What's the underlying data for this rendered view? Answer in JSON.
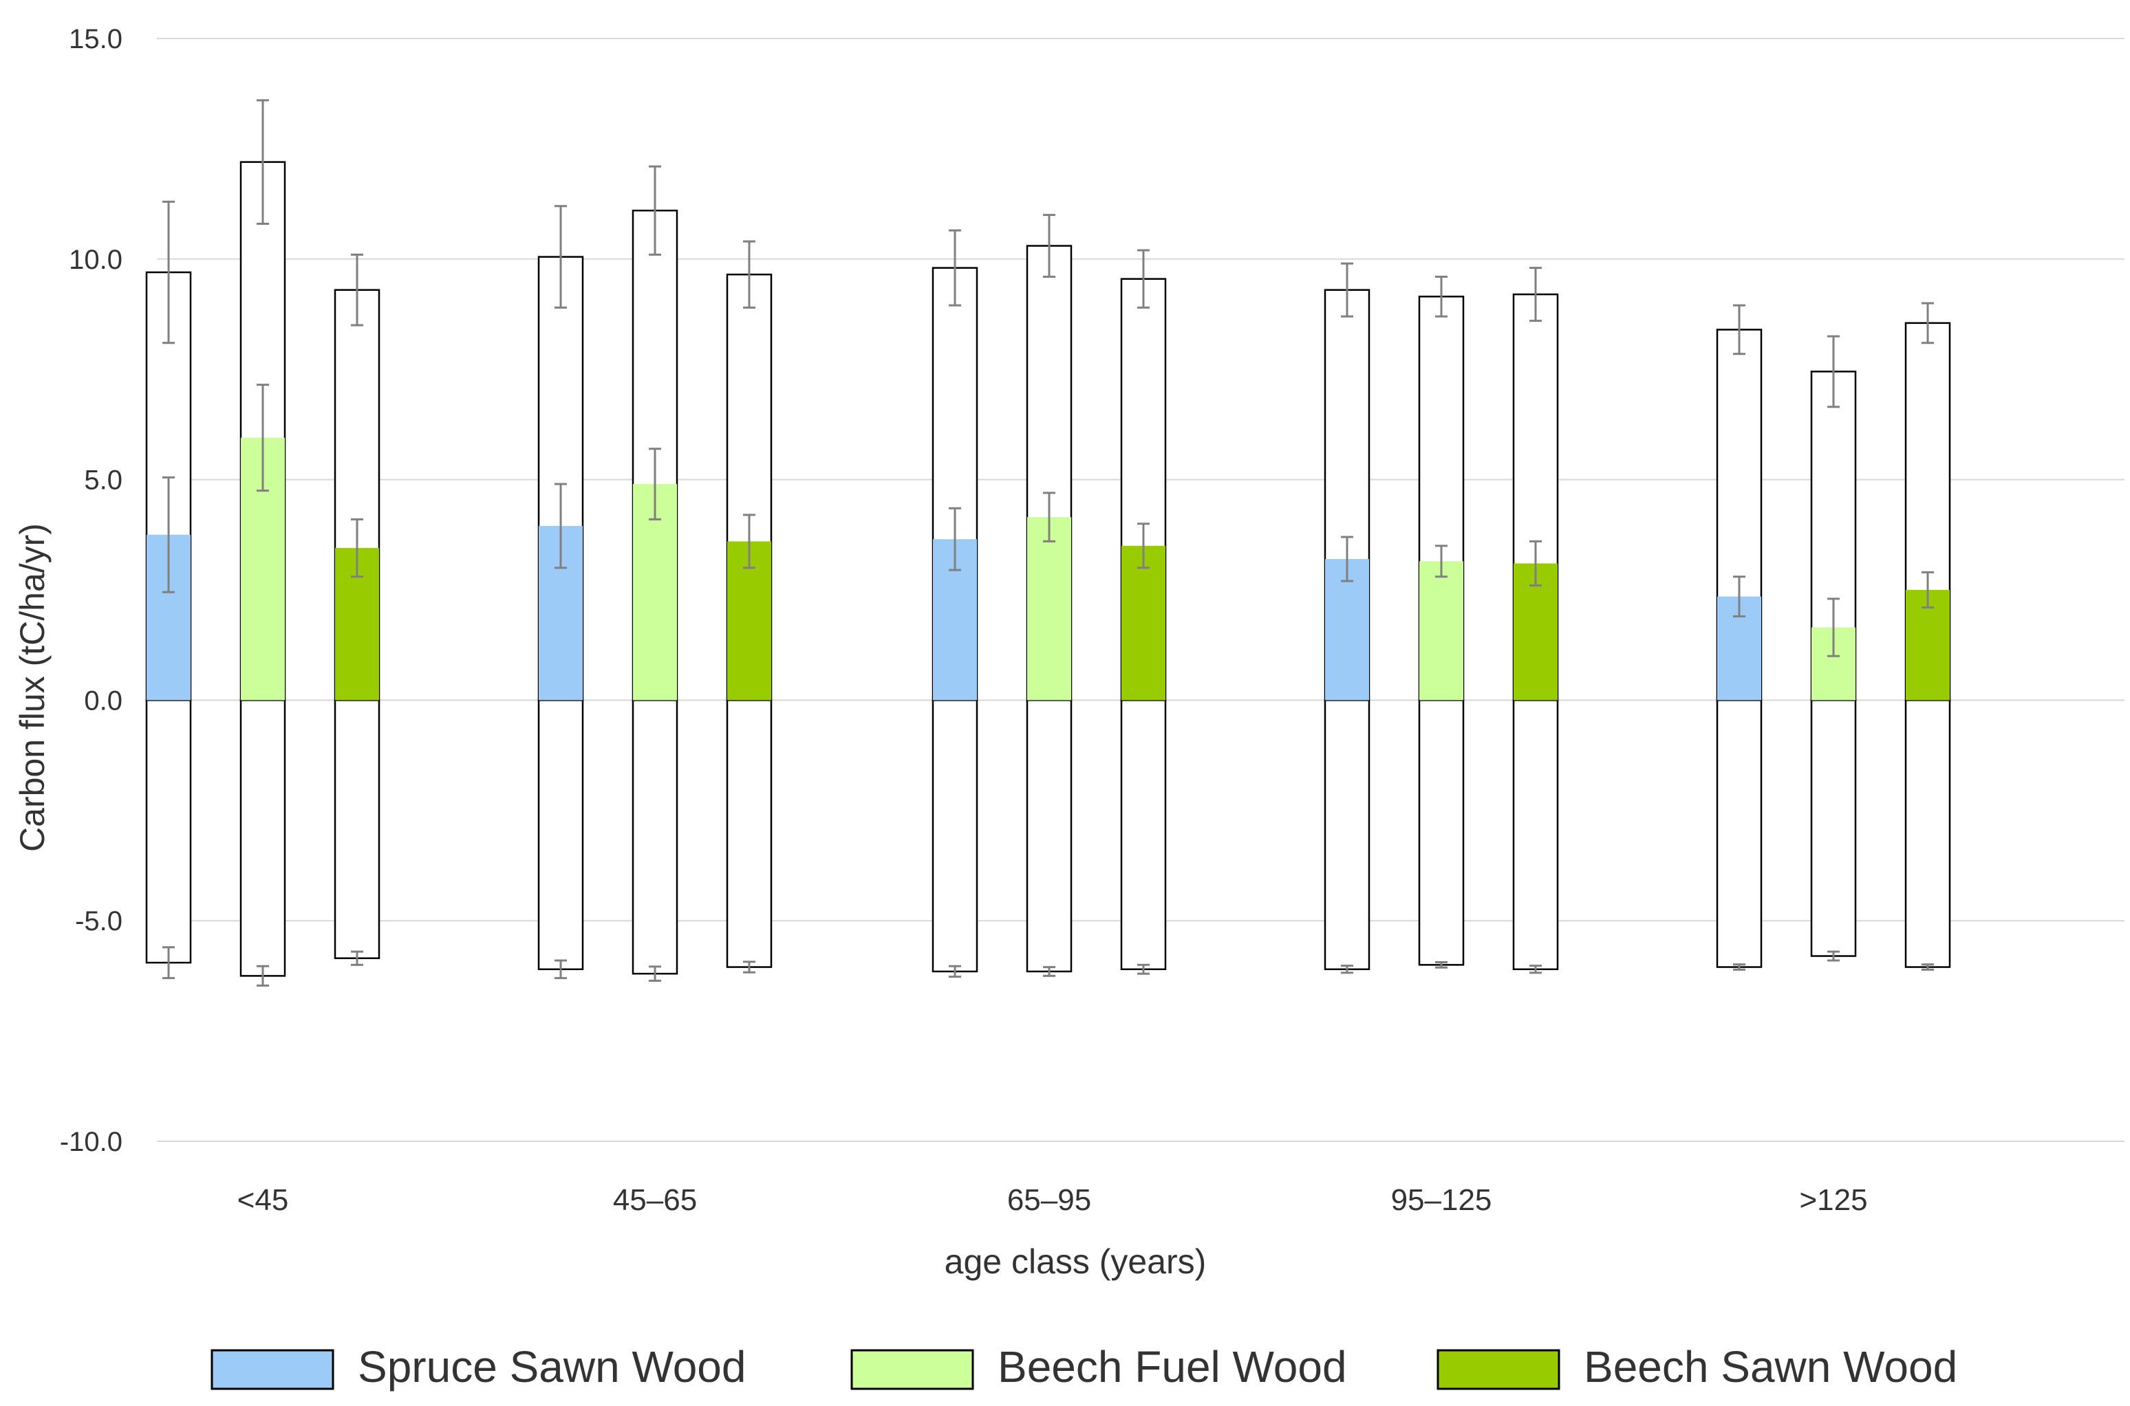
{
  "chart_data": {
    "type": "bar",
    "title": "",
    "xlabel": "age class (years)",
    "ylabel": "Carbon flux (tC/ha/yr)",
    "ylim": [
      -10,
      15
    ],
    "yticks": [
      15,
      10,
      5,
      0,
      -5,
      -10
    ],
    "ytick_labels": [
      "15.0",
      "10.0",
      "5.0",
      "0.0",
      "-5.0",
      "-10.0"
    ],
    "grid": true,
    "legend_position": "bottom",
    "categories": [
      "<45",
      "45–65",
      "65–95",
      "95–125",
      ">125"
    ],
    "series": [
      {
        "name": "Spruce Sawn Wood",
        "color": "#9dcbf7",
        "positive_total": [
          9.7,
          10.05,
          9.8,
          9.3,
          8.4
        ],
        "positive_total_err": [
          1.6,
          1.15,
          0.85,
          0.6,
          0.55
        ],
        "net": [
          3.75,
          3.95,
          3.65,
          3.2,
          2.35
        ],
        "net_err": [
          1.3,
          0.95,
          0.7,
          0.5,
          0.45
        ],
        "negative_total": [
          -5.95,
          -6.1,
          -6.15,
          -6.1,
          -6.05
        ],
        "negative_total_err": [
          0.35,
          0.2,
          0.12,
          0.08,
          0.06
        ]
      },
      {
        "name": "Beech Fuel Wood",
        "color": "#ccff99",
        "positive_total": [
          12.2,
          11.1,
          10.3,
          9.15,
          7.45
        ],
        "positive_total_err": [
          1.4,
          1.0,
          0.7,
          0.45,
          0.8
        ],
        "net": [
          5.95,
          4.9,
          4.15,
          3.15,
          1.65
        ],
        "net_err": [
          1.2,
          0.8,
          0.55,
          0.35,
          0.65
        ],
        "negative_total": [
          -6.25,
          -6.2,
          -6.15,
          -6.0,
          -5.8
        ],
        "negative_total_err": [
          0.22,
          0.16,
          0.1,
          0.06,
          0.1
        ]
      },
      {
        "name": "Beech Sawn Wood",
        "color": "#99cc00",
        "positive_total": [
          9.3,
          9.65,
          9.55,
          9.2,
          8.55
        ],
        "positive_total_err": [
          0.8,
          0.75,
          0.65,
          0.6,
          0.45
        ],
        "net": [
          3.45,
          3.6,
          3.5,
          3.1,
          2.5
        ],
        "net_err": [
          0.65,
          0.6,
          0.5,
          0.5,
          0.4
        ],
        "negative_total": [
          -5.85,
          -6.05,
          -6.1,
          -6.1,
          -6.05
        ],
        "negative_total_err": [
          0.15,
          0.12,
          0.1,
          0.08,
          0.06
        ]
      }
    ]
  }
}
